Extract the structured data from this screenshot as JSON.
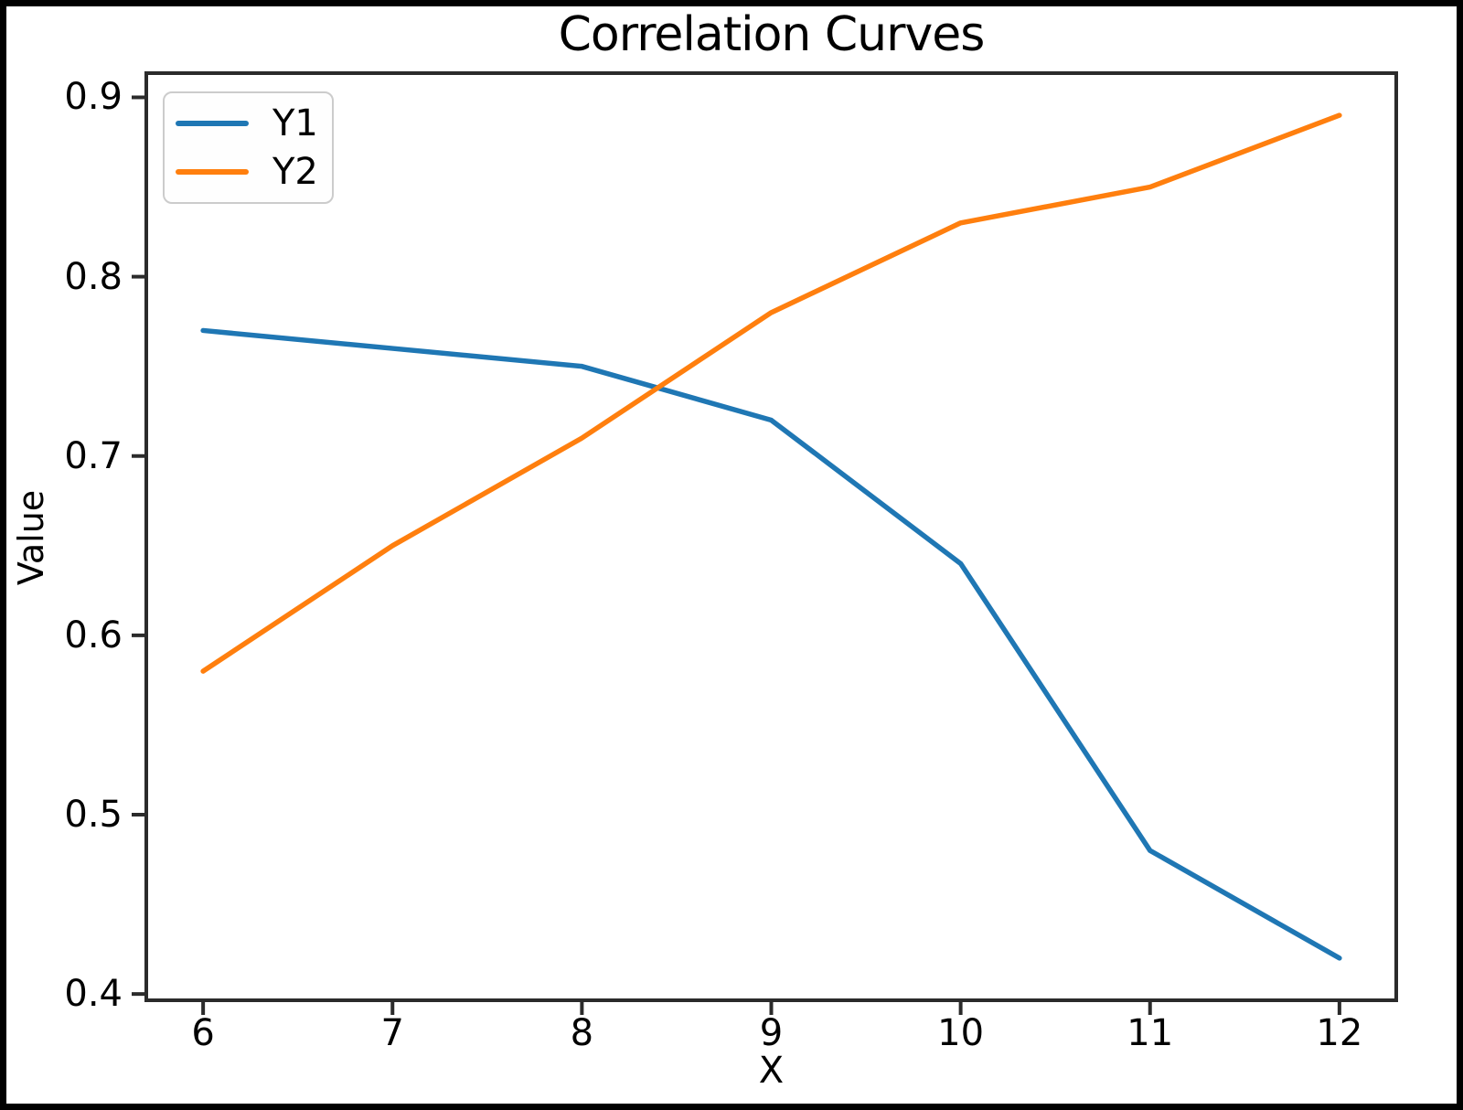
{
  "chart_data": {
    "type": "line",
    "title": "Correlation Curves",
    "xlabel": "X",
    "ylabel": "Value",
    "x": [
      6,
      7,
      8,
      9,
      10,
      11,
      12
    ],
    "series": [
      {
        "name": "Y1",
        "color": "#1f77b4",
        "values": [
          0.77,
          0.76,
          0.75,
          0.72,
          0.64,
          0.48,
          0.42
        ]
      },
      {
        "name": "Y2",
        "color": "#ff7f0e",
        "values": [
          0.58,
          0.65,
          0.71,
          0.78,
          0.83,
          0.85,
          0.89
        ]
      }
    ],
    "xlim": [
      5.7,
      12.3
    ],
    "ylim": [
      0.3965,
      0.9135
    ],
    "x_ticks": [
      6,
      7,
      8,
      9,
      10,
      11,
      12
    ],
    "x_tick_labels": [
      "6",
      "7",
      "8",
      "9",
      "10",
      "11",
      "12"
    ],
    "y_ticks": [
      0.4,
      0.5,
      0.6,
      0.7,
      0.8,
      0.9
    ],
    "y_tick_labels": [
      "0.4",
      "0.5",
      "0.6",
      "0.7",
      "0.8",
      "0.9"
    ],
    "grid": false,
    "legend_position": "upper left",
    "line_width": 5.5
  },
  "colors": {
    "axis": "#2b2b2b",
    "text": "#000000",
    "legend_border": "#cccccc",
    "outer_frame": "#000000",
    "background": "#ffffff"
  }
}
